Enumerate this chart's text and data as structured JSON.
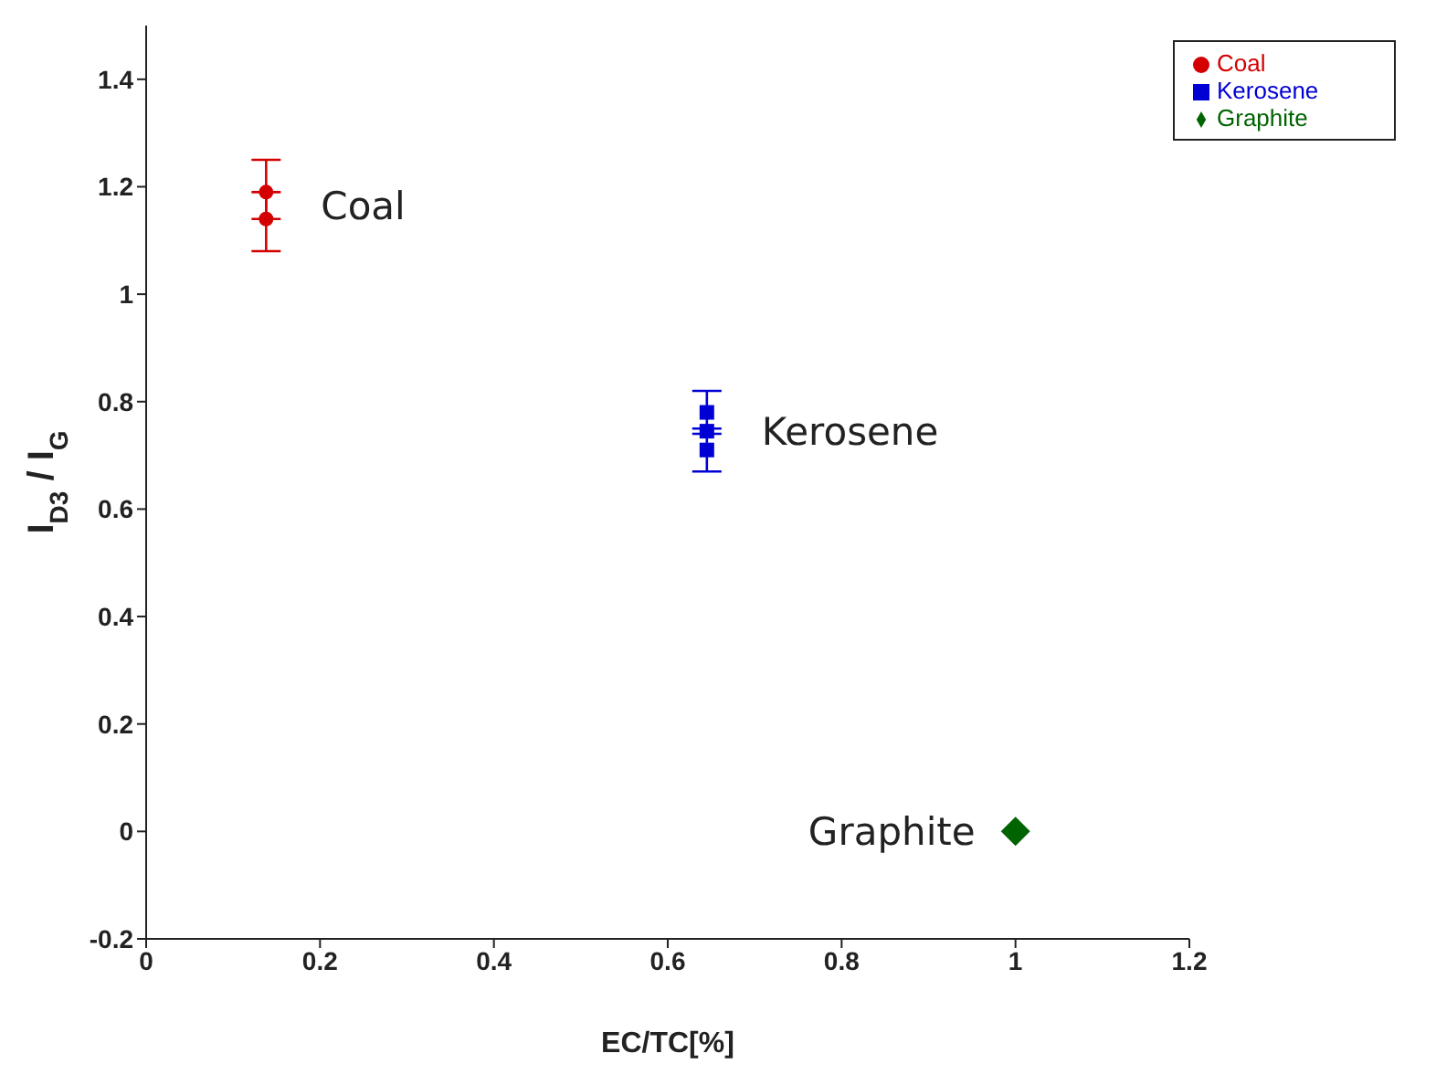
{
  "chart_data": {
    "type": "scatter",
    "xlabel": "EC/TC[%]",
    "ylabel": "I$_{D3}$ / I$_{G}$",
    "xlim": [
      0,
      1.2
    ],
    "xticks": [
      0,
      0.2,
      0.4,
      0.6,
      0.8,
      1,
      1.2
    ],
    "ylim": [
      -0.2,
      1.5
    ],
    "yticks": [
      -0.2,
      0,
      0.2,
      0.4,
      0.6,
      0.8,
      1,
      1.2,
      1.4
    ],
    "grid": false,
    "legend": "top right",
    "series": [
      {
        "name": "Coal",
        "color": "#d40000",
        "marker": "circle",
        "x": [
          0.138,
          0.138
        ],
        "values": [
          1.19,
          1.14
        ],
        "errors": [
          [
            1.14,
            1.25
          ],
          [
            1.08,
            1.19
          ]
        ]
      },
      {
        "name": "Kerosene",
        "color": "#0000d4",
        "marker": "square",
        "x": [
          0.645,
          0.645,
          0.645
        ],
        "values": [
          0.78,
          0.745,
          0.71
        ],
        "errors": [
          [
            0.74,
            0.82
          ],
          null,
          [
            0.67,
            0.75
          ]
        ]
      },
      {
        "name": "Graphite",
        "color": "#006400",
        "marker": "diamond",
        "x": [
          1.0
        ],
        "values": [
          0.0
        ]
      }
    ],
    "annotations": [
      {
        "text": "Coal",
        "x": 0.138,
        "y": 1.165
      },
      {
        "text": "Kerosene",
        "x": 0.645,
        "y": 0.745
      },
      {
        "text": "Graphite",
        "x": 1.0,
        "y": 0.0
      }
    ]
  }
}
